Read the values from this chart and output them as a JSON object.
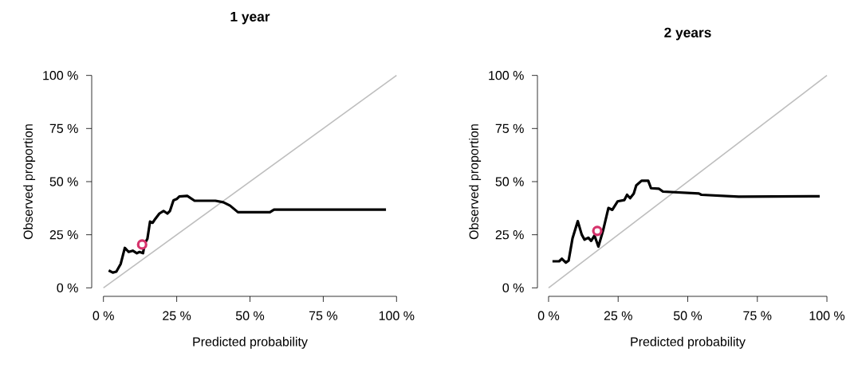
{
  "chart_data": [
    {
      "type": "line",
      "title": "1 year",
      "xlabel": "Predicted probability",
      "ylabel": "Observed proportion",
      "xlim": [
        0,
        100
      ],
      "ylim": [
        0,
        100
      ],
      "xticks": [
        {
          "value": 0,
          "label": "0 %"
        },
        {
          "value": 25,
          "label": "25 %"
        },
        {
          "value": 50,
          "label": "50 %"
        },
        {
          "value": 75,
          "label": "75 %"
        },
        {
          "value": 100,
          "label": "100 %"
        }
      ],
      "yticks": [
        {
          "value": 0,
          "label": "0 %"
        },
        {
          "value": 25,
          "label": "25 %"
        },
        {
          "value": 50,
          "label": "50 %"
        },
        {
          "value": 75,
          "label": "75 %"
        },
        {
          "value": 100,
          "label": "100 %"
        }
      ],
      "series": [
        {
          "color": "#bebebe",
          "x": [
            0,
            100
          ],
          "values": [
            0,
            100
          ]
        },
        {
          "color": "#000000",
          "x": [
            1.8,
            3.2,
            4.4,
            5.9,
            7.3,
            8.6,
            10.0,
            11.4,
            12.3,
            13.5,
            14.1,
            15.0,
            15.9,
            16.8,
            17.7,
            19.1,
            20.5,
            21.8,
            22.7,
            23.9,
            25.0,
            25.9,
            28.6,
            31.1,
            38.2,
            40.9,
            43.2,
            45.9,
            56.8,
            58.2,
            96.4
          ],
          "values": [
            8.2,
            7.2,
            7.6,
            11.3,
            18.8,
            16.9,
            17.5,
            16.3,
            16.9,
            16.3,
            20.8,
            23.1,
            31.2,
            30.6,
            32.5,
            35.0,
            36.2,
            35.0,
            36.2,
            41.2,
            41.8,
            43.0,
            43.3,
            41.0,
            41.0,
            40.3,
            38.7,
            35.6,
            35.6,
            36.8,
            36.8
          ]
        },
        {
          "type": "scatter",
          "marker": "circle",
          "color": "#d6336c",
          "x": [
            13.2
          ],
          "values": [
            20.4
          ]
        }
      ]
    },
    {
      "type": "line",
      "title": "2 years",
      "xlabel": "Predicted probability",
      "ylabel": "Observed proportion",
      "xlim": [
        0,
        100
      ],
      "ylim": [
        0,
        100
      ],
      "xticks": [
        {
          "value": 0,
          "label": "0 %"
        },
        {
          "value": 25,
          "label": "25 %"
        },
        {
          "value": 50,
          "label": "50 %"
        },
        {
          "value": 75,
          "label": "75 %"
        },
        {
          "value": 100,
          "label": "100 %"
        }
      ],
      "yticks": [
        {
          "value": 0,
          "label": "0 %"
        },
        {
          "value": 25,
          "label": "25 %"
        },
        {
          "value": 50,
          "label": "50 %"
        },
        {
          "value": 75,
          "label": "75 %"
        },
        {
          "value": 100,
          "label": "100 %"
        }
      ],
      "series": [
        {
          "color": "#bebebe",
          "x": [
            0,
            100
          ],
          "values": [
            0,
            100
          ]
        },
        {
          "color": "#000000",
          "x": [
            1.4,
            3.8,
            4.8,
            6.2,
            7.2,
            8.6,
            10.5,
            11.9,
            12.9,
            14.3,
            15.3,
            16.5,
            17.9,
            19.6,
            21.5,
            22.9,
            24.8,
            27.2,
            28.2,
            29.3,
            30.6,
            31.5,
            33.4,
            35.8,
            36.8,
            39.6,
            41.1,
            54.0,
            54.9,
            68.3,
            97.4
          ],
          "values": [
            12.5,
            12.5,
            13.7,
            11.9,
            12.8,
            23.3,
            31.4,
            25.1,
            22.7,
            23.6,
            22.1,
            24.6,
            19.4,
            27.1,
            37.6,
            36.7,
            40.7,
            41.3,
            43.8,
            42.2,
            44.4,
            48.2,
            50.4,
            50.4,
            46.9,
            46.7,
            45.3,
            44.4,
            43.8,
            42.9,
            43.1
          ]
        },
        {
          "type": "scatter",
          "marker": "circle",
          "color": "#d6336c",
          "x": [
            17.5
          ],
          "values": [
            26.8
          ]
        }
      ]
    }
  ]
}
